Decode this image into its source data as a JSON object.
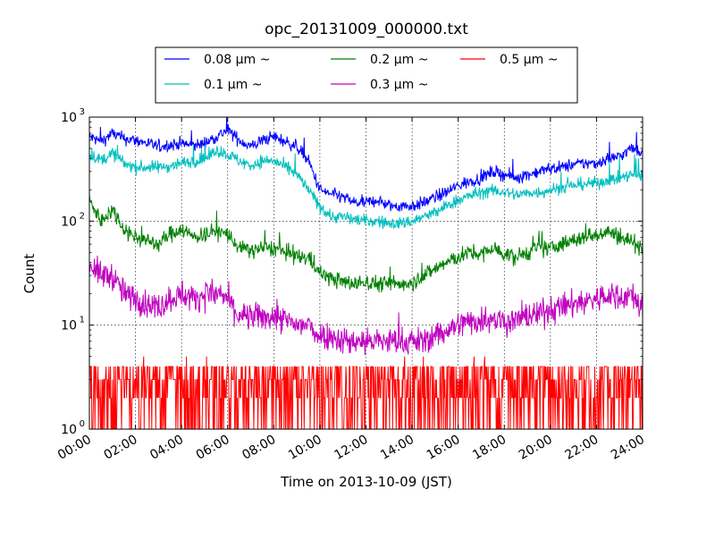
{
  "chart_data": {
    "type": "line",
    "title": "opc_20131009_000000.txt",
    "xlabel": "Time on 2013-10-09 (JST)",
    "ylabel": "Count",
    "y_scale": "log",
    "ylim": [
      1,
      1000
    ],
    "xlim": [
      "00:00",
      "24:00"
    ],
    "x_ticks": [
      "00:00",
      "02:00",
      "04:00",
      "06:00",
      "08:00",
      "10:00",
      "12:00",
      "14:00",
      "16:00",
      "18:00",
      "20:00",
      "22:00",
      "24:00"
    ],
    "y_ticks": [
      {
        "value": 1,
        "base": "10",
        "exp": "0"
      },
      {
        "value": 10,
        "base": "10",
        "exp": "1"
      },
      {
        "value": 100,
        "base": "10",
        "exp": "2"
      },
      {
        "value": 1000,
        "base": "10",
        "exp": "3"
      }
    ],
    "grid": true,
    "legend": {
      "placement": "top",
      "columns": 3
    },
    "x_hours": [
      0,
      0.5,
      1,
      1.5,
      2,
      2.5,
      3,
      3.5,
      4,
      4.5,
      5,
      5.5,
      6,
      6.5,
      7,
      7.5,
      8,
      8.5,
      9,
      9.5,
      10,
      10.5,
      11,
      11.5,
      12,
      12.5,
      13,
      13.5,
      14,
      14.5,
      15,
      15.5,
      16,
      16.5,
      17,
      17.5,
      18,
      18.5,
      19,
      19.5,
      20,
      20.5,
      21,
      21.5,
      22,
      22.5,
      23,
      23.5,
      24
    ],
    "series": [
      {
        "name": "0.08 μm ~",
        "color": "#0000ff",
        "noise": 0.1,
        "values": [
          650,
          580,
          700,
          620,
          600,
          560,
          520,
          540,
          560,
          530,
          560,
          650,
          750,
          600,
          520,
          600,
          650,
          580,
          520,
          380,
          200,
          180,
          170,
          150,
          150,
          160,
          140,
          140,
          140,
          150,
          170,
          190,
          220,
          240,
          260,
          300,
          280,
          260,
          280,
          300,
          320,
          330,
          350,
          360,
          360,
          400,
          420,
          500,
          460
        ]
      },
      {
        "name": "0.2 μm ~",
        "color": "#008000",
        "noise": 0.13,
        "values": [
          160,
          100,
          130,
          85,
          70,
          65,
          60,
          75,
          85,
          70,
          75,
          80,
          75,
          55,
          52,
          55,
          55,
          50,
          45,
          45,
          32,
          28,
          26,
          25,
          26,
          25,
          25,
          25,
          26,
          30,
          35,
          40,
          45,
          50,
          48,
          55,
          48,
          45,
          50,
          55,
          55,
          60,
          65,
          70,
          75,
          80,
          70,
          65,
          55
        ]
      },
      {
        "name": "0.5 μm ~",
        "color": "#ff0000",
        "noise": 0.0,
        "discrete": true,
        "values": [
          2,
          2,
          2,
          2,
          2,
          2,
          2,
          2,
          2,
          2,
          2,
          2,
          2,
          2,
          2,
          2,
          2,
          2,
          2,
          2,
          2,
          2,
          2,
          2,
          2,
          2,
          2,
          2,
          2,
          2,
          2,
          2,
          2,
          2,
          2,
          2,
          2,
          2,
          2,
          3,
          3,
          3,
          3,
          3,
          3,
          3,
          3,
          3,
          3
        ]
      },
      {
        "name": "0.1 μm ~",
        "color": "#00bfbf",
        "noise": 0.1,
        "values": [
          450,
          380,
          450,
          360,
          330,
          330,
          330,
          340,
          360,
          380,
          390,
          480,
          440,
          380,
          340,
          380,
          380,
          330,
          280,
          200,
          140,
          110,
          110,
          105,
          100,
          100,
          95,
          95,
          100,
          110,
          120,
          140,
          160,
          175,
          190,
          195,
          190,
          180,
          185,
          190,
          200,
          210,
          220,
          230,
          230,
          250,
          260,
          280,
          270
        ]
      },
      {
        "name": "0.3 μm ~",
        "color": "#bf00bf",
        "noise": 0.22,
        "values": [
          40,
          30,
          30,
          20,
          18,
          16,
          15,
          18,
          20,
          18,
          20,
          20,
          18,
          12,
          12,
          12,
          12,
          11,
          10,
          10,
          8,
          8,
          7,
          7,
          7,
          7,
          7,
          7,
          7,
          7,
          8,
          9,
          10,
          11,
          11,
          12,
          11,
          11,
          12,
          13,
          14,
          15,
          16,
          17,
          18,
          19,
          19,
          19,
          15
        ]
      }
    ]
  }
}
